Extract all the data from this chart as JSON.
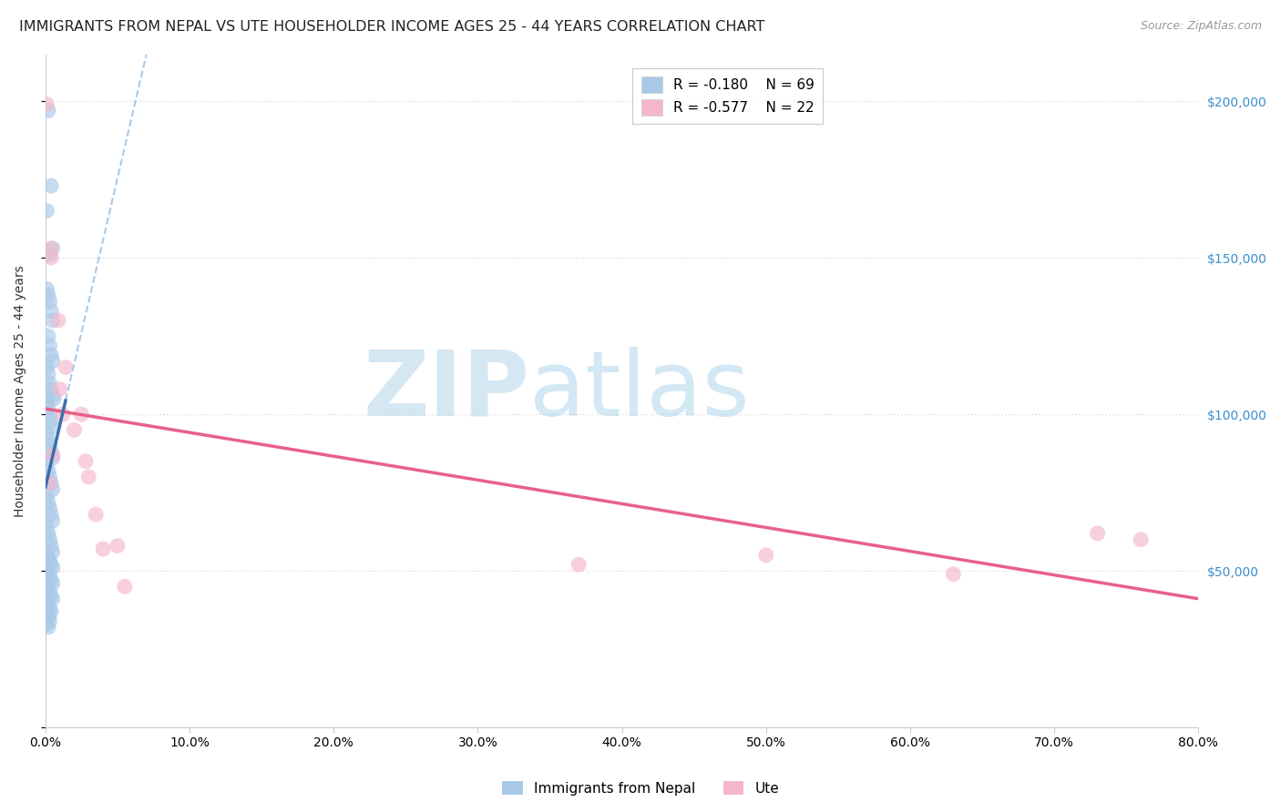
{
  "title": "IMMIGRANTS FROM NEPAL VS UTE HOUSEHOLDER INCOME AGES 25 - 44 YEARS CORRELATION CHART",
  "source": "Source: ZipAtlas.com",
  "ylabel": "Householder Income Ages 25 - 44 years",
  "watermark_zip": "ZIP",
  "watermark_atlas": "atlas",
  "xlim": [
    0.0,
    0.8
  ],
  "ylim": [
    0,
    215000
  ],
  "yticks": [
    0,
    50000,
    100000,
    150000,
    200000
  ],
  "ytick_labels": [
    "",
    "$50,000",
    "$100,000",
    "$150,000",
    "$200,000"
  ],
  "xtick_vals": [
    0.0,
    0.1,
    0.2,
    0.3,
    0.4,
    0.5,
    0.6,
    0.7,
    0.8
  ],
  "xtick_labels": [
    "0.0%",
    "10.0%",
    "20.0%",
    "30.0%",
    "40.0%",
    "50.0%",
    "60.0%",
    "70.0%",
    "80.0%"
  ],
  "nepal_color": "#aac9e8",
  "ute_color": "#f5b8cb",
  "nepal_line_color": "#3a6fad",
  "ute_line_color": "#e8608a",
  "nepal_R": -0.18,
  "nepal_N": 69,
  "ute_R": -0.577,
  "ute_N": 22,
  "nepal_x": [
    0.002,
    0.004,
    0.001,
    0.005,
    0.003,
    0.001,
    0.002,
    0.003,
    0.004,
    0.005,
    0.006,
    0.002,
    0.003,
    0.004,
    0.005,
    0.001,
    0.002,
    0.003,
    0.004,
    0.005,
    0.001,
    0.002,
    0.003,
    0.004,
    0.005,
    0.001,
    0.002,
    0.003,
    0.004,
    0.005,
    0.001,
    0.002,
    0.003,
    0.004,
    0.005,
    0.001,
    0.002,
    0.003,
    0.004,
    0.005,
    0.001,
    0.002,
    0.003,
    0.004,
    0.005,
    0.001,
    0.002,
    0.003,
    0.004,
    0.005,
    0.001,
    0.002,
    0.003,
    0.004,
    0.005,
    0.001,
    0.002,
    0.003,
    0.004,
    0.005,
    0.001,
    0.002,
    0.003,
    0.004,
    0.001,
    0.002,
    0.003,
    0.001,
    0.002
  ],
  "nepal_y": [
    197000,
    173000,
    165000,
    153000,
    151000,
    140000,
    138000,
    136000,
    133000,
    130000,
    105000,
    125000,
    122000,
    119000,
    117000,
    115000,
    113000,
    110000,
    108000,
    106000,
    104000,
    102000,
    100000,
    98000,
    96000,
    94000,
    92000,
    90000,
    88000,
    86000,
    84000,
    82000,
    80000,
    78000,
    76000,
    74000,
    72000,
    70000,
    68000,
    66000,
    64000,
    62000,
    60000,
    58000,
    56000,
    55000,
    54000,
    53000,
    52000,
    51000,
    50000,
    49000,
    48000,
    47000,
    46000,
    45000,
    44000,
    43000,
    42000,
    41000,
    40000,
    39000,
    38000,
    37000,
    36000,
    35000,
    34000,
    33000,
    32000
  ],
  "ute_x": [
    0.001,
    0.004,
    0.004,
    0.009,
    0.01,
    0.012,
    0.014,
    0.02,
    0.025,
    0.028,
    0.03,
    0.035,
    0.04,
    0.05,
    0.055,
    0.37,
    0.5,
    0.63,
    0.73,
    0.76,
    0.005,
    0.003
  ],
  "ute_y": [
    199000,
    153000,
    150000,
    130000,
    108000,
    100000,
    115000,
    95000,
    100000,
    85000,
    80000,
    68000,
    57000,
    58000,
    45000,
    52000,
    55000,
    49000,
    62000,
    60000,
    87000,
    78000
  ],
  "background_color": "#ffffff",
  "grid_color": "#dddddd",
  "title_fontsize": 11.5,
  "axis_label_fontsize": 10,
  "tick_fontsize": 10
}
